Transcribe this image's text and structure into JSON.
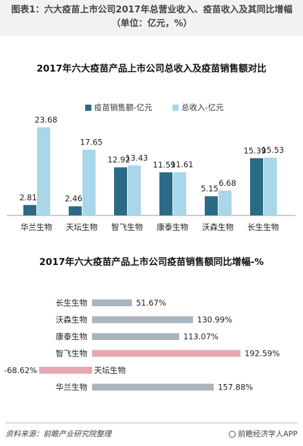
{
  "header": {
    "title": "图表1：六大疫苗上市公司2017年总营业收入、疫苗收入及其同比增幅（单位：亿元，%）"
  },
  "colors": {
    "vaccine_sales": "#2c6b85",
    "total_income": "#a9d6e8",
    "positive_bar": "#aab4bd",
    "highlight_bar": "#e6a8b0"
  },
  "chart_data": [
    {
      "type": "bar",
      "title": "2017年六大疫苗产品上市公司总收入及疫苗销售额对比",
      "categories": [
        "华兰生物",
        "天坛生物",
        "智飞生物",
        "康泰生物",
        "沃森生物",
        "长生生物"
      ],
      "series": [
        {
          "name": "疫苗销售额-亿元",
          "values": [
            2.81,
            2.46,
            12.92,
            11.59,
            5.15,
            15.39
          ],
          "labels": [
            "2.81",
            "2.46",
            "12.92",
            "11.59",
            "5.15",
            "15.39"
          ]
        },
        {
          "name": "总收入-亿元",
          "values": [
            23.68,
            17.65,
            13.43,
            11.61,
            6.68,
            15.53
          ],
          "labels": [
            "23.68",
            "17.65",
            "13.43",
            "11.61",
            "6.68",
            "15.53"
          ]
        }
      ],
      "ylim": [
        0,
        25
      ],
      "legend_position": "top",
      "grid": false
    },
    {
      "type": "bar",
      "orientation": "horizontal",
      "title": "2017年六大疫苗产品上市公司疫苗销售额同比增幅-%",
      "categories": [
        "长生生物",
        "沃森生物",
        "康泰生物",
        "智飞生物",
        "天坛生物",
        "华兰生物"
      ],
      "values": [
        51.67,
        130.99,
        113.07,
        192.59,
        -68.62,
        157.88
      ],
      "labels": [
        "51.67%",
        "130.99%",
        "113.07%",
        "192.59%",
        "-68.62%",
        "157.88%"
      ],
      "highlighted": [
        "智飞生物",
        "天坛生物"
      ],
      "xlim": [
        -70,
        200
      ],
      "grid": false
    }
  ],
  "footer": {
    "source": "资料来源：前瞻产业研究院整理",
    "brand": "前瞻经济学人APP"
  }
}
